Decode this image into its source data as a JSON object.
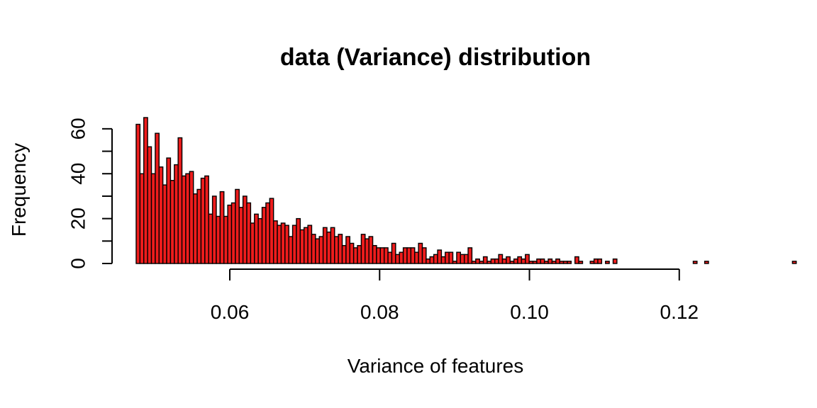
{
  "chart_data": {
    "type": "bar",
    "title": "data (Variance) distribution",
    "xlabel": "Variance of features",
    "ylabel": "Frequency",
    "xlim": [
      0.0475,
      0.1275
    ],
    "ylim": [
      0,
      65
    ],
    "x_ticks": [
      0.06,
      0.08,
      0.1,
      0.12
    ],
    "x_tick_labels": [
      "0.06",
      "0.08",
      "0.10",
      "0.12"
    ],
    "y_ticks": [
      0,
      10,
      20,
      30,
      40,
      50,
      60
    ],
    "y_tick_labels": [
      "0",
      "",
      "20",
      "",
      "40",
      "",
      "60"
    ],
    "bin_start": 0.05,
    "bin_width": 0.0005,
    "values": [
      62,
      40,
      65,
      52,
      40,
      58,
      43,
      35,
      47,
      37,
      44,
      56,
      39,
      40,
      41,
      31,
      33,
      38,
      39,
      22,
      30,
      21,
      32,
      21,
      26,
      27,
      33,
      25,
      30,
      27,
      18,
      22,
      20,
      25,
      27,
      29,
      19,
      17,
      18,
      17,
      12,
      17,
      20,
      15,
      16,
      17,
      13,
      11,
      12,
      16,
      14,
      16,
      12,
      13,
      8,
      12,
      9,
      7,
      8,
      13,
      11,
      12,
      8,
      7,
      7,
      7,
      5,
      9,
      4,
      5,
      7,
      7,
      7,
      5,
      9,
      7,
      2,
      3,
      4,
      6,
      3,
      5,
      5,
      1,
      5,
      4,
      4,
      7,
      1,
      2,
      1,
      3,
      1,
      2,
      2,
      4,
      2,
      3,
      1,
      2,
      3,
      2,
      4,
      1,
      1,
      2,
      2,
      1,
      2,
      1,
      2,
      1,
      1,
      1,
      0,
      3,
      1,
      0,
      0,
      1,
      2,
      2,
      0,
      1,
      0,
      2,
      0,
      0,
      0,
      0,
      0,
      0,
      0,
      0,
      0,
      0,
      0,
      0,
      0,
      0,
      0,
      0,
      0,
      0,
      0,
      0,
      1,
      0,
      0,
      1,
      0,
      0,
      0,
      0,
      0,
      0,
      0,
      0,
      0,
      0,
      0,
      0,
      0,
      0,
      0,
      0,
      0,
      0,
      0,
      0,
      0,
      0,
      1
    ],
    "bar_color": "#ee1c1c",
    "grid": false,
    "legend": "none"
  }
}
